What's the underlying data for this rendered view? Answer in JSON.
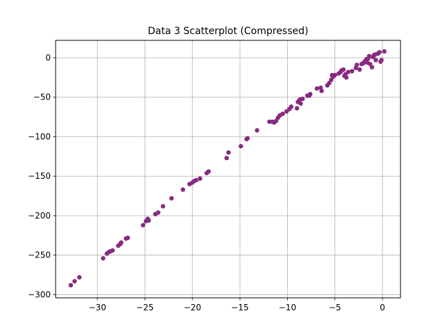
{
  "chart_data": {
    "type": "scatter",
    "title": "Data 3 Scatterplot (Compressed)",
    "xlabel": "",
    "ylabel": "",
    "xlim": [
      -34.4,
      1.9
    ],
    "ylim": [
      -304,
      22
    ],
    "xticks": [
      -30,
      -25,
      -20,
      -15,
      -10,
      -5,
      0
    ],
    "yticks": [
      -300,
      -250,
      -200,
      -150,
      -100,
      -50,
      0
    ],
    "xtick_labels": [
      "−30",
      "−25",
      "−20",
      "−15",
      "−10",
      "−5",
      "0"
    ],
    "ytick_labels": [
      "−300",
      "−250",
      "−200",
      "−150",
      "−100",
      "−50",
      "0"
    ],
    "grid": true,
    "point_color": "#882a82",
    "series": [
      {
        "x": [
          -32.8,
          -32.4,
          -31.9,
          -29.4,
          -29.0,
          -28.8,
          -28.6,
          -28.4,
          -27.8,
          -27.6,
          -27.5,
          -27.0,
          -26.8,
          -25.2,
          -24.9,
          -24.7,
          -24.6,
          -23.9,
          -23.6,
          -23.1,
          -22.2,
          -21.0,
          -20.3,
          -20.0,
          -19.8,
          -19.6,
          -19.2,
          -18.5,
          -18.3,
          -16.4,
          -16.2,
          -14.9,
          -14.3,
          -14.2,
          -13.2,
          -11.9,
          -11.6,
          -11.4,
          -11.2,
          -11.0,
          -10.8,
          -10.5,
          -10.1,
          -9.8,
          -9.6,
          -9.0,
          -8.9,
          -8.7,
          -8.8,
          -8.6,
          -8.4,
          -7.9,
          -7.7,
          -7.6,
          -6.9,
          -6.5,
          -6.4,
          -5.8,
          -5.6,
          -5.4,
          -5.2,
          -5.3,
          -5.0,
          -4.6,
          -4.3,
          -4.4,
          -4.1,
          -4.0,
          -3.9,
          -3.8,
          -3.6,
          -3.2,
          -2.8,
          -2.7,
          -2.4,
          -2.2,
          -2.0,
          -1.9,
          -1.7,
          -1.6,
          -1.5,
          -1.4,
          -1.3,
          -1.1,
          -1.0,
          -0.9,
          -0.8,
          -0.7,
          -0.5,
          -0.4,
          -0.3,
          -0.2,
          -0.1,
          0.2
        ],
        "y": [
          -288,
          -283,
          -278,
          -254,
          -248,
          -246,
          -245,
          -244,
          -238,
          -236,
          -234,
          -229,
          -228,
          -212,
          -207,
          -204,
          -206,
          -198,
          -196,
          -188,
          -178,
          -167,
          -160,
          -158,
          -156,
          -155,
          -153,
          -146,
          -144,
          -127,
          -120,
          -112,
          -103,
          -102,
          -92,
          -81,
          -81,
          -82,
          -80,
          -76,
          -73,
          -71,
          -68,
          -65,
          -62,
          -64,
          -56,
          -53,
          -55,
          -58,
          -52,
          -48,
          -48,
          -46,
          -39,
          -38,
          -42,
          -35,
          -32,
          -28,
          -24,
          -22,
          -22,
          -20,
          -16,
          -18,
          -15,
          -23,
          -21,
          -25,
          -18,
          -17,
          -13,
          -9,
          -15,
          -8,
          -7,
          -5,
          -2,
          -6,
          -1,
          2,
          -8,
          -12,
          1,
          3,
          4,
          -3,
          5,
          6,
          7,
          -5,
          -3,
          8
        ]
      }
    ]
  }
}
